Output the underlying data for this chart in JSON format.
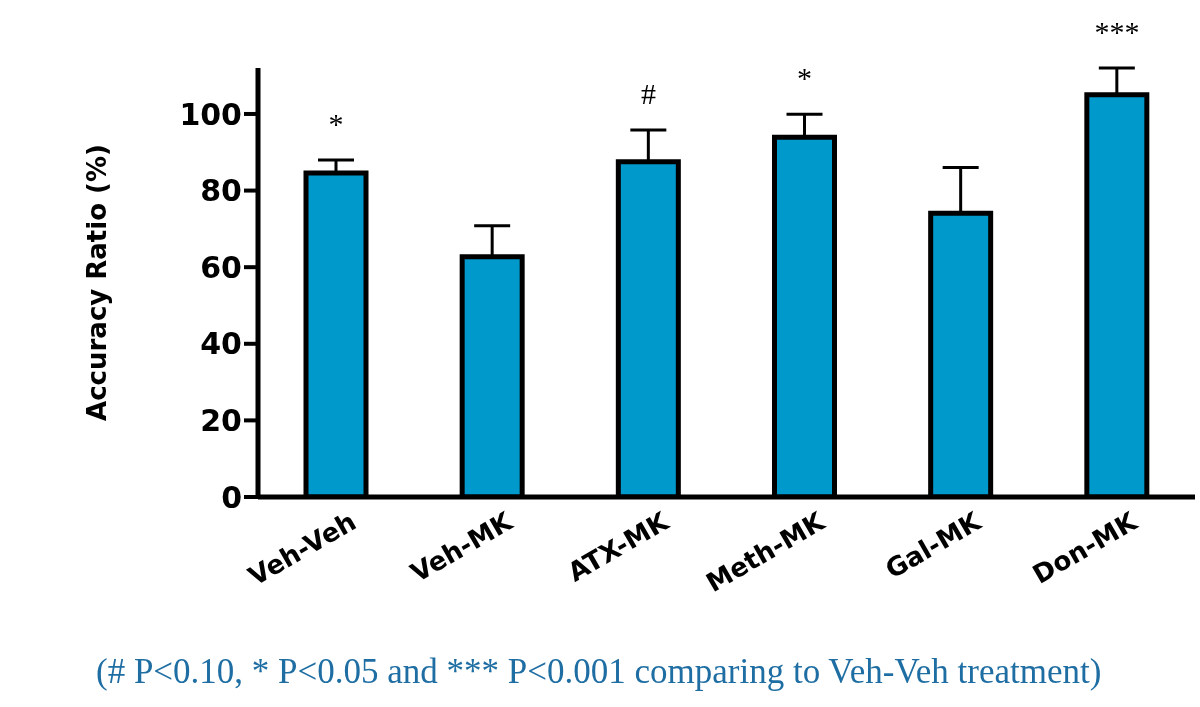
{
  "chart_data": {
    "type": "bar",
    "ylabel": "Accuracy Ratio (%)",
    "categories": [
      "Veh-Veh",
      "Veh-MK",
      "ATX-MK",
      "Meth-MK",
      "Gal-MK",
      "Don-MK"
    ],
    "values": [
      84.6,
      62.7,
      87.5,
      93.9,
      74.1,
      105
    ],
    "errors": [
      [
        84.6,
        88
      ],
      [
        62.7,
        70.8
      ],
      [
        87.5,
        95.8
      ],
      [
        93.9,
        99.9
      ],
      [
        74.1,
        86
      ],
      [
        105,
        112
      ]
    ],
    "color": "#0099cc",
    "ylim": [
      0,
      112
    ],
    "yticks": [
      0,
      20,
      40,
      60,
      80,
      100
    ],
    "grid": false,
    "legend": false,
    "annotations": [
      {
        "text": "*",
        "x": "Veh-Veh",
        "y": 88
      },
      {
        "text": "#",
        "x": "ATX-MK",
        "y": 95.8
      },
      {
        "text": "*",
        "x": "Meth-MK",
        "y": 99.9
      },
      {
        "text": "***",
        "x": "Don-MK",
        "y": 112
      },
      "(# P<0.10, * P<0.05 and *** P<0.001 comparing to Veh-Veh treatment)"
    ]
  }
}
